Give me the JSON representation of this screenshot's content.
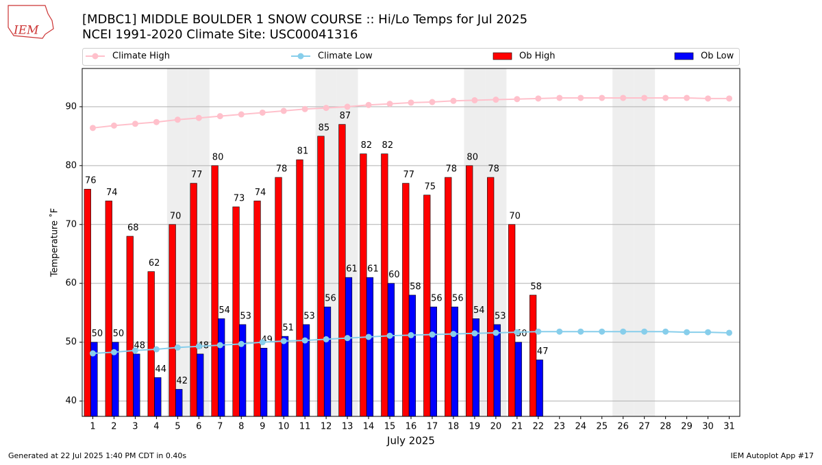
{
  "chart_data": {
    "type": "bar",
    "title": "[MDBC1] MIDDLE BOULDER 1 SNOW COURSE :: Hi/Lo Temps for Jul 2025",
    "subtitle": "NCEI 1991-2020 Climate Site: USC00041316",
    "logo_text": "IEM",
    "x_label": "July 2025",
    "y_label": "Temperature ˚F",
    "footer_left": "Generated at 22 Jul 2025 1:40 PM CDT in 0.40s",
    "footer_right": "IEM Autoplot App #17",
    "x": [
      1,
      2,
      3,
      4,
      5,
      6,
      7,
      8,
      9,
      10,
      11,
      12,
      13,
      14,
      15,
      16,
      17,
      18,
      19,
      20,
      21,
      22,
      23,
      24,
      25,
      26,
      27,
      28,
      29,
      30,
      31
    ],
    "xlim": [
      0.5,
      31.5
    ],
    "xticks": [
      1,
      2,
      3,
      4,
      5,
      6,
      7,
      8,
      9,
      10,
      11,
      12,
      13,
      14,
      15,
      16,
      17,
      18,
      19,
      20,
      21,
      22,
      23,
      24,
      25,
      26,
      27,
      28,
      29,
      30,
      31
    ],
    "ylim": [
      37.4,
      96.5
    ],
    "yticks": [
      40,
      50,
      60,
      70,
      80,
      90
    ],
    "grid": true,
    "shaded_days": [
      5,
      6,
      12,
      13,
      19,
      20,
      26,
      27
    ],
    "series": [
      {
        "name": "Climate High",
        "type": "line",
        "color": "#ffc0cb",
        "values": [
          86.4,
          86.8,
          87.1,
          87.4,
          87.8,
          88.1,
          88.4,
          88.7,
          89.0,
          89.3,
          89.6,
          89.8,
          90.0,
          90.3,
          90.5,
          90.7,
          90.8,
          91.0,
          91.1,
          91.2,
          91.3,
          91.4,
          91.5,
          91.5,
          91.5,
          91.5,
          91.5,
          91.5,
          91.5,
          91.4,
          91.4
        ]
      },
      {
        "name": "Climate Low",
        "type": "line",
        "color": "#87ceeb",
        "values": [
          48.1,
          48.3,
          48.6,
          48.8,
          49.1,
          49.3,
          49.5,
          49.7,
          50.0,
          50.2,
          50.3,
          50.5,
          50.7,
          50.9,
          51.1,
          51.2,
          51.3,
          51.4,
          51.5,
          51.6,
          51.7,
          51.8,
          51.8,
          51.8,
          51.8,
          51.8,
          51.8,
          51.8,
          51.7,
          51.7,
          51.6
        ]
      },
      {
        "name": "Ob High",
        "type": "bar",
        "color": "#ff0000",
        "values": [
          76,
          74,
          68,
          62,
          70,
          77,
          80,
          73,
          74,
          78,
          81,
          85,
          87,
          82,
          82,
          77,
          75,
          78,
          80,
          78,
          70,
          58,
          null,
          null,
          null,
          null,
          null,
          null,
          null,
          null,
          null
        ]
      },
      {
        "name": "Ob Low",
        "type": "bar",
        "color": "#0000ff",
        "values": [
          50,
          50,
          48,
          44,
          42,
          48,
          54,
          53,
          49,
          51,
          53,
          56,
          61,
          61,
          60,
          58,
          56,
          56,
          54,
          53,
          50,
          47,
          null,
          null,
          null,
          null,
          null,
          null,
          null,
          null,
          null
        ]
      }
    ]
  }
}
